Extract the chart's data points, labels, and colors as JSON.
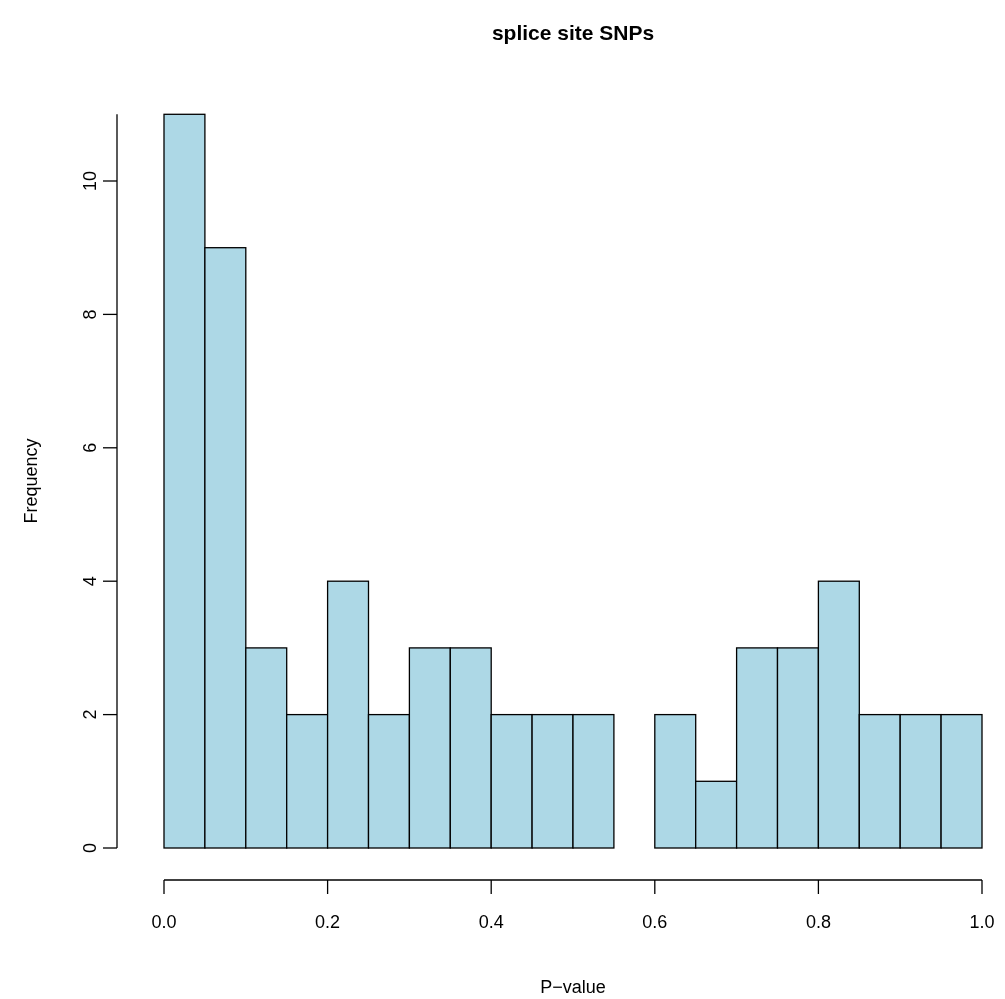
{
  "chart_data": {
    "type": "histogram",
    "title": "splice site SNPs",
    "xlabel": "P−value",
    "ylabel": "Frequency",
    "bins": [
      0,
      0.05,
      0.1,
      0.15,
      0.2,
      0.25,
      0.3,
      0.35,
      0.4,
      0.45,
      0.5,
      0.55,
      0.6,
      0.65,
      0.7,
      0.75,
      0.8,
      0.85,
      0.9,
      0.95,
      1.0
    ],
    "values": [
      11,
      9,
      3,
      2,
      4,
      2,
      3,
      3,
      2,
      2,
      2,
      0,
      2,
      1,
      3,
      3,
      4,
      2,
      2,
      2
    ],
    "color": "#add8e6",
    "xlim": [
      0,
      1
    ],
    "xticks": [
      {
        "value": 0,
        "label": "0.0"
      },
      {
        "value": 0.2,
        "label": "0.2"
      },
      {
        "value": 0.4,
        "label": "0.4"
      },
      {
        "value": 0.6,
        "label": "0.6"
      },
      {
        "value": 0.8,
        "label": "0.8"
      },
      {
        "value": 1,
        "label": "1.0"
      }
    ],
    "ylim": [
      0,
      11
    ],
    "yticks": [
      0,
      2,
      4,
      6,
      8,
      10
    ],
    "grid": false
  }
}
